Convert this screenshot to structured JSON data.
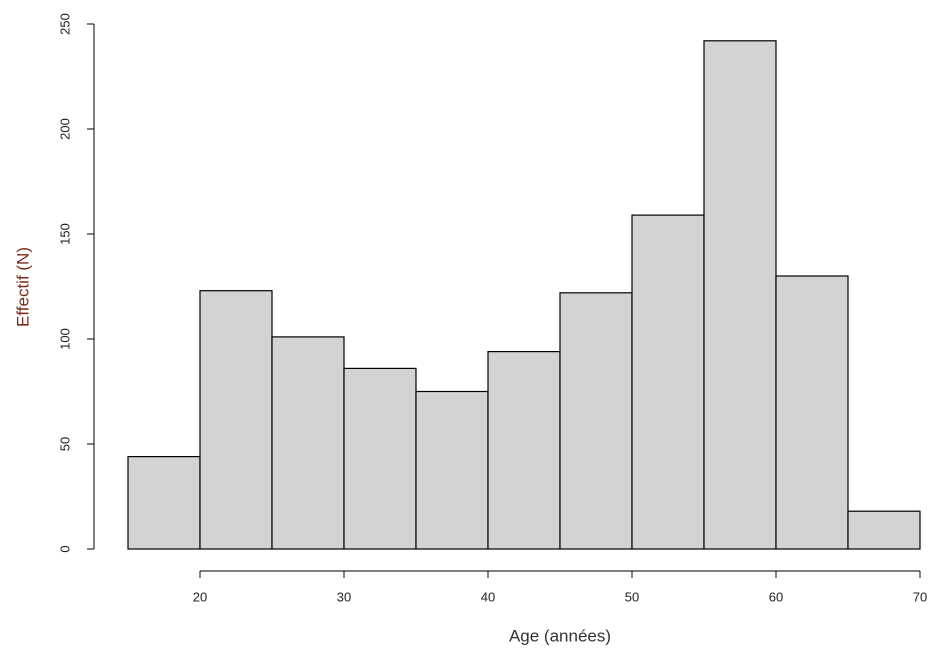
{
  "chart_data": {
    "type": "histogram",
    "x_label": "Age (années)",
    "y_label": "Effectif (N)",
    "bins": [
      15,
      20,
      25,
      30,
      35,
      40,
      45,
      50,
      55,
      60,
      65,
      70
    ],
    "values": [
      44,
      123,
      101,
      86,
      75,
      94,
      122,
      159,
      242,
      130,
      18
    ],
    "color": "#d3d3d3",
    "xlim": [
      15,
      70
    ],
    "xticks": [
      20,
      30,
      40,
      50,
      60,
      70
    ],
    "ylim": [
      0,
      250
    ],
    "yticks": [
      0,
      50,
      100,
      150,
      200,
      250
    ]
  }
}
